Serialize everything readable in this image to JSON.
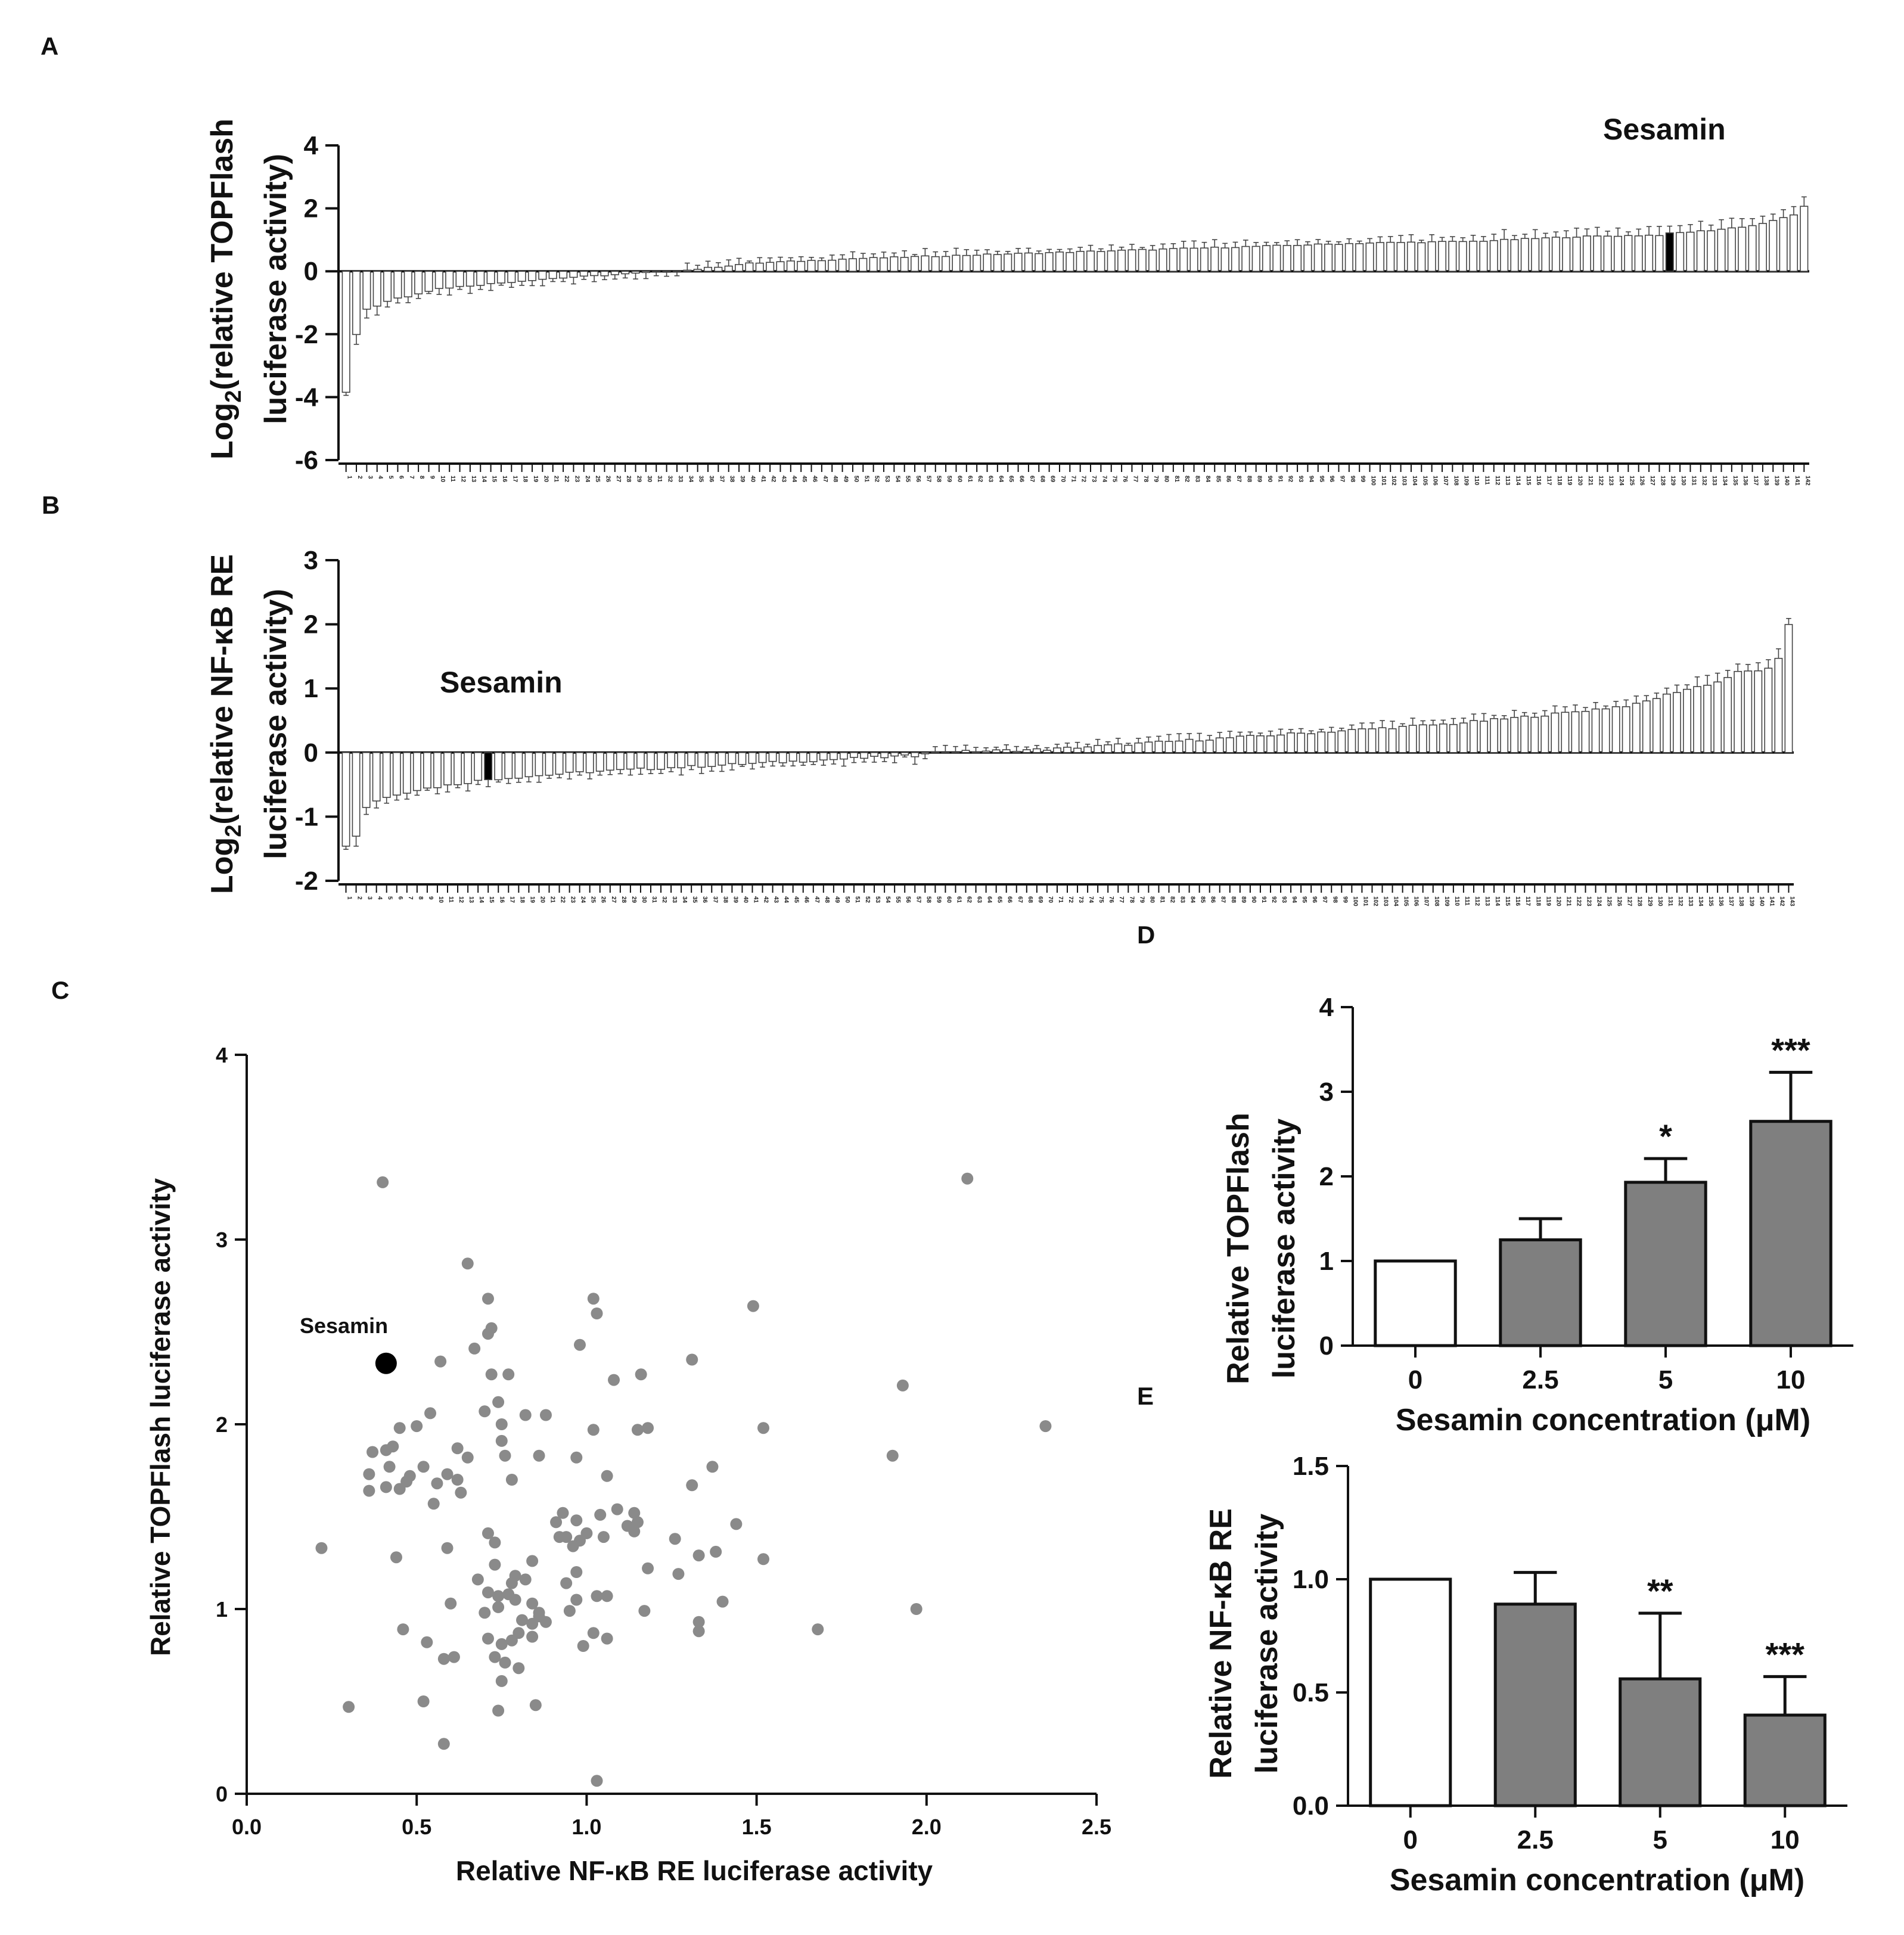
{
  "panels": {
    "A": "A",
    "B": "B",
    "C": "C",
    "D": "D",
    "E": "E"
  },
  "chart_data": [
    {
      "id": "A",
      "type": "bar",
      "ylabel_line1": "Log2(relative TOPFlash",
      "ylabel_line2": "luciferase activity)",
      "ylabel_prefix": "Log",
      "ylabel_sub": "2",
      "ylabel_rest": "(relative TOPFlash",
      "ylim": [
        -6,
        4
      ],
      "yticks": [
        "4",
        "2",
        "0",
        "-2",
        "-4",
        "-6"
      ],
      "yticks_values": [
        4,
        2,
        0,
        -2,
        -4,
        -6
      ],
      "n_compounds": 142,
      "categories_note": "compounds numbered 1-142",
      "highlight_label": "Sesamin",
      "highlight_index": 129,
      "anchor_values": [
        [
          1,
          -3.85
        ],
        [
          2,
          -2.0
        ],
        [
          3,
          -1.2
        ],
        [
          4,
          -1.1
        ],
        [
          5,
          -0.95
        ],
        [
          6,
          -0.85
        ],
        [
          7,
          -0.8
        ],
        [
          8,
          -0.7
        ],
        [
          10,
          -0.55
        ],
        [
          20,
          -0.25
        ],
        [
          30,
          -0.05
        ],
        [
          33,
          0.0
        ],
        [
          40,
          0.25
        ],
        [
          50,
          0.4
        ],
        [
          60,
          0.5
        ],
        [
          70,
          0.6
        ],
        [
          80,
          0.7
        ],
        [
          90,
          0.8
        ],
        [
          100,
          0.9
        ],
        [
          110,
          0.95
        ],
        [
          120,
          1.1
        ],
        [
          128,
          1.15
        ],
        [
          129,
          1.2
        ],
        [
          133,
          1.3
        ],
        [
          137,
          1.45
        ],
        [
          139,
          1.6
        ],
        [
          140,
          1.7
        ],
        [
          141,
          1.8
        ],
        [
          142,
          2.05
        ]
      ]
    },
    {
      "id": "B",
      "type": "bar",
      "ylabel_prefix": "Log",
      "ylabel_sub": "2",
      "ylabel_rest": "(relative NF-κB RE",
      "ylabel_line2": "luciferase activity)",
      "ylim": [
        -2,
        3
      ],
      "yticks": [
        "3",
        "2",
        "1",
        "0",
        "-1",
        "-2"
      ],
      "yticks_values": [
        3,
        2,
        1,
        0,
        -1,
        -2
      ],
      "n_compounds": 143,
      "highlight_label": "Sesamin",
      "highlight_index": 15,
      "anchor_values": [
        [
          1,
          -1.45
        ],
        [
          2,
          -1.3
        ],
        [
          3,
          -0.85
        ],
        [
          4,
          -0.75
        ],
        [
          5,
          -0.7
        ],
        [
          6,
          -0.65
        ],
        [
          8,
          -0.58
        ],
        [
          15,
          -0.42
        ],
        [
          25,
          -0.3
        ],
        [
          40,
          -0.18
        ],
        [
          50,
          -0.1
        ],
        [
          57,
          -0.05
        ],
        [
          58,
          0.0
        ],
        [
          70,
          0.05
        ],
        [
          80,
          0.15
        ],
        [
          90,
          0.25
        ],
        [
          100,
          0.35
        ],
        [
          110,
          0.45
        ],
        [
          120,
          0.6
        ],
        [
          128,
          0.75
        ],
        [
          132,
          0.95
        ],
        [
          136,
          1.1
        ],
        [
          138,
          1.25
        ],
        [
          141,
          1.3
        ],
        [
          142,
          1.45
        ],
        [
          143,
          2.0
        ]
      ]
    },
    {
      "id": "C",
      "type": "scatter",
      "xlabel": "Relative NF-κB RE luciferase activity",
      "ylabel": "Relative TOPFlash luciferase activity",
      "xlim": [
        0.0,
        2.5
      ],
      "ylim": [
        0,
        4
      ],
      "xticks": [
        "0.0",
        "0.5",
        "1.0",
        "1.5",
        "2.0",
        "2.5"
      ],
      "xticks_values": [
        0.0,
        0.5,
        1.0,
        1.5,
        2.0,
        2.5
      ],
      "yticks": [
        "0",
        "1",
        "2",
        "3",
        "4"
      ],
      "yticks_values": [
        0,
        1,
        2,
        3,
        4
      ],
      "highlight_label": "Sesamin",
      "highlight": [
        0.41,
        2.33
      ],
      "points": [
        [
          0.4,
          3.31
        ],
        [
          2.12,
          3.33
        ],
        [
          0.65,
          2.87
        ],
        [
          0.71,
          2.68
        ],
        [
          1.02,
          2.68
        ],
        [
          0.72,
          2.52
        ],
        [
          1.03,
          2.6
        ],
        [
          1.49,
          2.64
        ],
        [
          0.71,
          2.49
        ],
        [
          0.98,
          2.43
        ],
        [
          0.67,
          2.41
        ],
        [
          0.57,
          2.34
        ],
        [
          1.31,
          2.35
        ],
        [
          0.77,
          2.27
        ],
        [
          0.72,
          2.27
        ],
        [
          1.16,
          2.27
        ],
        [
          1.08,
          2.24
        ],
        [
          1.93,
          2.21
        ],
        [
          0.82,
          2.05
        ],
        [
          0.75,
          2.0
        ],
        [
          0.74,
          2.12
        ],
        [
          0.7,
          2.07
        ],
        [
          0.54,
          2.06
        ],
        [
          0.45,
          1.98
        ],
        [
          0.5,
          1.99
        ],
        [
          1.02,
          1.97
        ],
        [
          1.15,
          1.97
        ],
        [
          1.18,
          1.98
        ],
        [
          1.52,
          1.98
        ],
        [
          2.35,
          1.99
        ],
        [
          0.88,
          2.05
        ],
        [
          0.75,
          1.91
        ],
        [
          0.43,
          1.88
        ],
        [
          0.41,
          1.86
        ],
        [
          0.37,
          1.85
        ],
        [
          0.62,
          1.87
        ],
        [
          0.65,
          1.82
        ],
        [
          0.76,
          1.83
        ],
        [
          0.42,
          1.77
        ],
        [
          0.52,
          1.77
        ],
        [
          0.36,
          1.73
        ],
        [
          0.47,
          1.69
        ],
        [
          0.48,
          1.72
        ],
        [
          0.56,
          1.68
        ],
        [
          0.59,
          1.73
        ],
        [
          0.62,
          1.7
        ],
        [
          0.36,
          1.64
        ],
        [
          0.41,
          1.66
        ],
        [
          0.45,
          1.65
        ],
        [
          0.55,
          1.57
        ],
        [
          0.63,
          1.63
        ],
        [
          0.78,
          1.7
        ],
        [
          0.86,
          1.83
        ],
        [
          0.97,
          1.82
        ],
        [
          1.06,
          1.72
        ],
        [
          1.37,
          1.77
        ],
        [
          1.9,
          1.83
        ],
        [
          1.09,
          1.54
        ],
        [
          1.14,
          1.52
        ],
        [
          1.04,
          1.51
        ],
        [
          1.15,
          1.47
        ],
        [
          1.31,
          1.67
        ],
        [
          1.26,
          1.38
        ],
        [
          0.92,
          1.39
        ],
        [
          0.91,
          1.47
        ],
        [
          0.93,
          1.52
        ],
        [
          0.97,
          1.48
        ],
        [
          1.0,
          1.41
        ],
        [
          0.98,
          1.37
        ],
        [
          1.05,
          1.39
        ],
        [
          1.12,
          1.45
        ],
        [
          1.14,
          1.42
        ],
        [
          1.44,
          1.46
        ],
        [
          0.71,
          1.41
        ],
        [
          0.73,
          1.36
        ],
        [
          0.59,
          1.33
        ],
        [
          0.44,
          1.28
        ],
        [
          0.84,
          1.26
        ],
        [
          0.94,
          1.39
        ],
        [
          0.96,
          1.34
        ],
        [
          1.33,
          1.29
        ],
        [
          1.38,
          1.31
        ],
        [
          1.52,
          1.27
        ],
        [
          0.22,
          1.33
        ],
        [
          0.73,
          1.24
        ],
        [
          0.68,
          1.16
        ],
        [
          0.71,
          1.09
        ],
        [
          0.78,
          1.14
        ],
        [
          0.79,
          1.18
        ],
        [
          0.74,
          1.07
        ],
        [
          0.74,
          1.01
        ],
        [
          0.77,
          1.08
        ],
        [
          0.82,
          1.16
        ],
        [
          0.84,
          1.03
        ],
        [
          0.86,
          0.98
        ],
        [
          0.94,
          1.14
        ],
        [
          0.97,
          1.2
        ],
        [
          1.03,
          1.07
        ],
        [
          1.06,
          1.07
        ],
        [
          0.97,
          1.05
        ],
        [
          1.18,
          1.22
        ],
        [
          1.27,
          1.19
        ],
        [
          0.6,
          1.03
        ],
        [
          0.79,
          1.05
        ],
        [
          0.7,
          0.98
        ],
        [
          0.81,
          0.94
        ],
        [
          0.84,
          0.92
        ],
        [
          0.86,
          0.96
        ],
        [
          0.8,
          0.87
        ],
        [
          0.84,
          0.85
        ],
        [
          0.88,
          0.93
        ],
        [
          0.95,
          0.99
        ],
        [
          1.02,
          0.87
        ],
        [
          1.06,
          0.84
        ],
        [
          1.17,
          0.99
        ],
        [
          1.33,
          0.93
        ],
        [
          1.4,
          1.04
        ],
        [
          1.97,
          1.0
        ],
        [
          1.68,
          0.89
        ],
        [
          0.46,
          0.89
        ],
        [
          0.71,
          0.84
        ],
        [
          0.75,
          0.81
        ],
        [
          0.78,
          0.83
        ],
        [
          0.53,
          0.82
        ],
        [
          0.58,
          0.73
        ],
        [
          0.73,
          0.74
        ],
        [
          0.76,
          0.71
        ],
        [
          0.8,
          0.68
        ],
        [
          0.75,
          0.61
        ],
        [
          0.99,
          0.8
        ],
        [
          1.33,
          0.88
        ],
        [
          0.3,
          0.47
        ],
        [
          0.52,
          0.5
        ],
        [
          0.74,
          0.45
        ],
        [
          0.85,
          0.48
        ],
        [
          0.58,
          0.27
        ],
        [
          1.03,
          0.07
        ],
        [
          0.61,
          0.74
        ]
      ]
    },
    {
      "id": "D",
      "type": "bar",
      "ylabel_line1": "Relative TOPFlash",
      "ylabel_line2": "luciferase activity",
      "xlabel": "Sesamin concentration (μM)",
      "categories": [
        "0",
        "2.5",
        "5",
        "10"
      ],
      "values": [
        1.0,
        1.25,
        1.93,
        2.65
      ],
      "errors": [
        0.0,
        0.25,
        0.28,
        0.58
      ],
      "fills": [
        "#ffffff",
        "#7f7f7f",
        "#7f7f7f",
        "#7f7f7f"
      ],
      "significance": [
        "",
        "",
        "*",
        "***"
      ],
      "ylim": [
        0,
        4
      ],
      "yticks": [
        "4",
        "3",
        "2",
        "1",
        "0"
      ],
      "yticks_values": [
        4,
        3,
        2,
        1,
        0
      ]
    },
    {
      "id": "E",
      "type": "bar",
      "ylabel_line1": "Relative NF-κB RE",
      "ylabel_line2": "luciferase activity",
      "xlabel": "Sesamin concentration (μM)",
      "categories": [
        "0",
        "2.5",
        "5",
        "10"
      ],
      "values": [
        1.0,
        0.89,
        0.56,
        0.4
      ],
      "errors": [
        0.0,
        0.14,
        0.29,
        0.17
      ],
      "fills": [
        "#ffffff",
        "#7f7f7f",
        "#7f7f7f",
        "#7f7f7f"
      ],
      "significance": [
        "",
        "",
        "**",
        "***"
      ],
      "ylim": [
        0,
        1.5
      ],
      "yticks": [
        "1.5",
        "1.0",
        "0.5",
        "0.0"
      ],
      "yticks_values": [
        1.5,
        1.0,
        0.5,
        0.0
      ]
    }
  ]
}
